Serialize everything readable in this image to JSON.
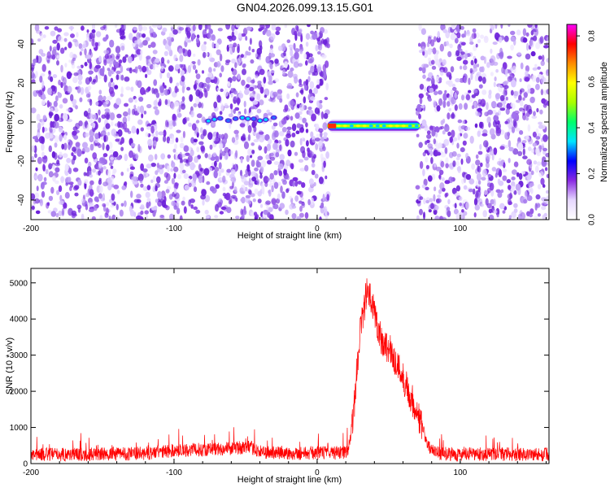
{
  "chart_data": [
    {
      "type": "heatmap",
      "title": "GN04.2026.099.13.15.G01",
      "xlabel": "Height of straight line (km)",
      "ylabel": "Frequency (Hz)",
      "xlim": [
        -200,
        162
      ],
      "ylim": [
        -50,
        50
      ],
      "x_ticks": [
        -200,
        -100,
        0,
        100
      ],
      "y_ticks": [
        -40,
        -20,
        0,
        20,
        40
      ],
      "colorbar": {
        "label": "Normalized spectral amplitude",
        "range": [
          0.0,
          0.85
        ],
        "ticks": [
          "0.0",
          "0.2",
          "0.4",
          "0.6",
          "0.8"
        ],
        "colors": [
          "#ffffff",
          "#e6d7ff",
          "#8a2be2",
          "#0000ff",
          "#00e5ff",
          "#00ff6a",
          "#a8ff00",
          "#ffff00",
          "#ff8c00",
          "#ff0000",
          "#ff00ff"
        ]
      },
      "noise_bands_km": [
        [
          -200,
          8
        ],
        [
          70,
          162
        ]
      ],
      "signal_segments": [
        {
          "x_start": -76,
          "x_end": -25,
          "freq": 1,
          "amplitude": 0.35
        },
        {
          "x_start": 7,
          "x_end": 72,
          "freq": -2,
          "amplitude": 0.85
        }
      ],
      "grid": false
    },
    {
      "type": "line",
      "xlabel": "Height of straight line (km)",
      "ylabel": "SNR (10 * v/v)",
      "xlim": [
        -200,
        162
      ],
      "ylim": [
        0,
        5400
      ],
      "x_ticks": [
        -200,
        -100,
        0,
        100
      ],
      "y_ticks": [
        0,
        1000,
        2000,
        3000,
        4000,
        5000
      ],
      "series_color": "#ff0000",
      "profile": {
        "x": [
          -200,
          -150,
          -120,
          -100,
          -80,
          -60,
          -50,
          -45,
          -40,
          -20,
          0,
          10,
          20,
          22,
          25,
          30,
          35,
          40,
          45,
          50,
          55,
          60,
          65,
          70,
          75,
          78,
          82,
          100,
          120,
          140,
          162
        ],
        "y": [
          250,
          260,
          280,
          360,
          390,
          420,
          450,
          430,
          320,
          280,
          300,
          300,
          300,
          400,
          1200,
          3700,
          4800,
          4200,
          3400,
          3200,
          2800,
          2400,
          1900,
          1400,
          800,
          450,
          300,
          250,
          260,
          260,
          250
        ]
      },
      "grid": false
    }
  ]
}
